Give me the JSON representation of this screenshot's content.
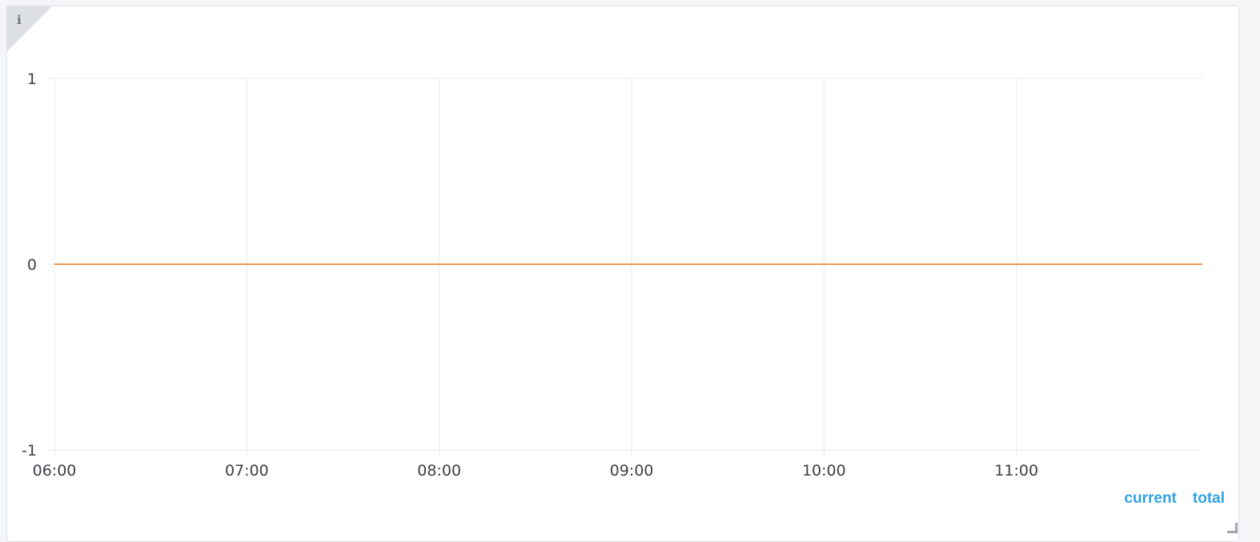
{
  "panel": {
    "info_icon": "info-icon"
  },
  "chart_data": {
    "type": "line",
    "x_ticks": [
      "06:00",
      "07:00",
      "08:00",
      "09:00",
      "10:00",
      "11:00"
    ],
    "y_ticks": [
      "1",
      "0",
      "-1"
    ],
    "ylim": [
      -1,
      1
    ],
    "xlim": [
      "06:00",
      "11:58"
    ],
    "grid": true,
    "series": [
      {
        "color": "#e8771e",
        "x": [
          "06:00",
          "11:58"
        ],
        "y": [
          0,
          0
        ]
      }
    ],
    "legend_columns": [
      "current",
      "total"
    ],
    "legend_color": "#33a2e5"
  }
}
